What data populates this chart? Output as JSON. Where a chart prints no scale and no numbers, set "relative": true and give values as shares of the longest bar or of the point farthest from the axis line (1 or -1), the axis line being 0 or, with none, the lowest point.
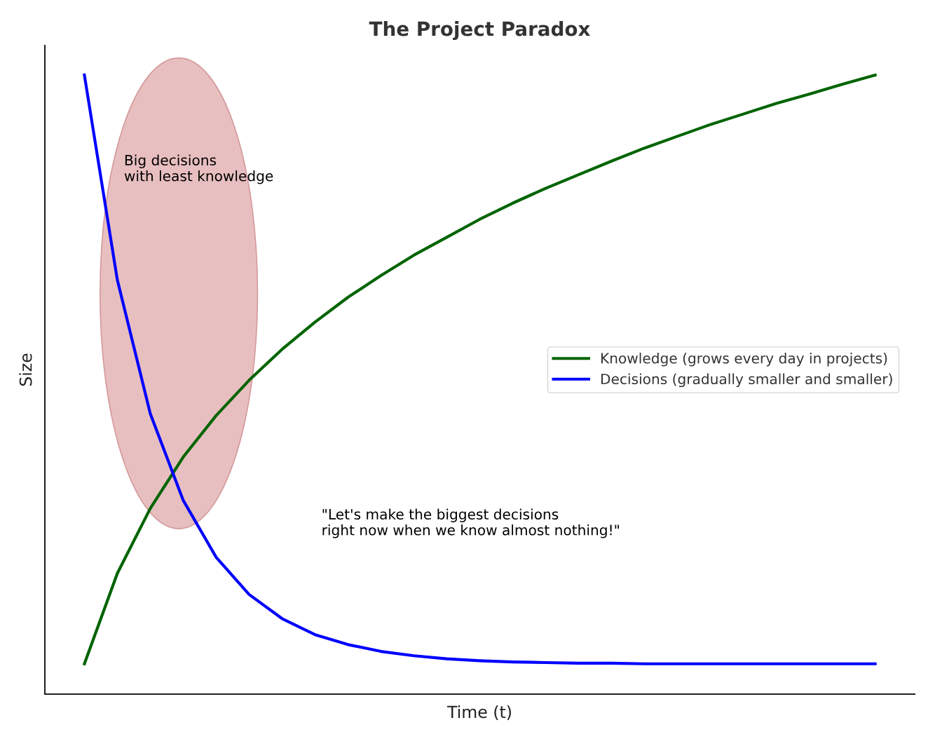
{
  "chart_data": {
    "type": "line",
    "title": "The Project Paradox",
    "xlabel": "Time (t)",
    "ylabel": "Size",
    "relative": true,
    "categories": [
      null,
      null,
      null,
      null,
      null,
      null,
      null,
      null,
      null,
      null,
      null,
      null,
      null,
      null,
      null,
      null,
      null,
      null,
      null,
      null,
      null,
      null,
      null,
      null,
      null
    ],
    "series": [
      {
        "name": "Knowledge (grows every day in projects)",
        "color": "#006400",
        "values": [
          0.049,
          0.195,
          0.3,
          0.383,
          0.45,
          0.507,
          0.557,
          0.601,
          0.641,
          0.676,
          0.709,
          0.738,
          0.767,
          0.793,
          0.817,
          0.839,
          0.861,
          0.882,
          0.901,
          0.92,
          0.937,
          0.954,
          0.969,
          0.985,
          1.0
        ]
      },
      {
        "name": "Decisions (gradually smaller and smaller)",
        "color": "#0000ff",
        "values": [
          1.0,
          0.669,
          0.453,
          0.313,
          0.221,
          0.161,
          0.122,
          0.096,
          0.08,
          0.069,
          0.062,
          0.057,
          0.054,
          0.052,
          0.051,
          0.05,
          0.05,
          0.049,
          0.049,
          0.049,
          0.049,
          0.049,
          0.049,
          0.049,
          0.049
        ]
      }
    ],
    "annotations": [
      "Big decisions\nwith least knowledge",
      "\"Let's make the biggest decisions\nright now when we know almost nothing!\""
    ],
    "legend": "center right",
    "grid": false,
    "marker": "none",
    "line_style": "solid"
  }
}
